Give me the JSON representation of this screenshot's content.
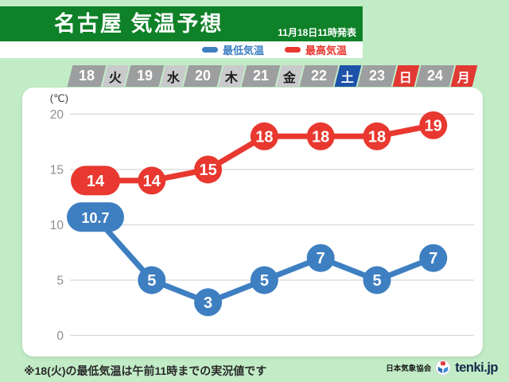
{
  "header": {
    "title": "名古屋 気温予想",
    "issued": "11月18日11時発表"
  },
  "legend": {
    "items": [
      {
        "label": "最低気温",
        "color": "#3e7fc1"
      },
      {
        "label": "最高気温",
        "color": "#e8382f"
      }
    ]
  },
  "date_row": {
    "days": [
      {
        "date": "18",
        "weekday": "火",
        "type": "weekday"
      },
      {
        "date": "19",
        "weekday": "水",
        "type": "weekday"
      },
      {
        "date": "20",
        "weekday": "木",
        "type": "weekday"
      },
      {
        "date": "21",
        "weekday": "金",
        "type": "weekday"
      },
      {
        "date": "22",
        "weekday": "土",
        "type": "saturday"
      },
      {
        "date": "23",
        "weekday": "日",
        "type": "sunday"
      },
      {
        "date": "24",
        "weekday": "月",
        "type": "holiday"
      }
    ]
  },
  "chart_data": {
    "type": "line",
    "title": "名古屋 気温予想",
    "unit_label": "(℃)",
    "x_categories": [
      "18",
      "19",
      "20",
      "21",
      "22",
      "23",
      "24"
    ],
    "x_weekdays": [
      "火",
      "水",
      "木",
      "金",
      "土",
      "日",
      "月"
    ],
    "y_ticks": [
      20,
      15,
      10,
      5,
      0
    ],
    "ylim": [
      0,
      21.5
    ],
    "grid": true,
    "legend_position": "top",
    "series": [
      {
        "name": "最高気温",
        "color": "#e8382f",
        "values": [
          14,
          14,
          15,
          18,
          18,
          18,
          19
        ],
        "labels": [
          "14",
          "14",
          "15",
          "18",
          "18",
          "18",
          "19"
        ]
      },
      {
        "name": "最低気温",
        "color": "#3e7fc1",
        "values": [
          10.7,
          5,
          3,
          5,
          7,
          5,
          7
        ],
        "labels": [
          "10.7",
          "5",
          "3",
          "5",
          "7",
          "5",
          "7"
        ]
      }
    ]
  },
  "footer": {
    "note": "※18(火)の最低気温は午前11時までの実況値です",
    "attribution": "日本気象協会",
    "brand": "tenki.jp"
  },
  "colors": {
    "background": "#c2ecc6",
    "banner": "#0f8128",
    "date_bg": "#9d9ea0",
    "weekday_bg": "#c9cacc",
    "weekday_text": "#1c1c1c",
    "saturday_bg": "#1d52a8",
    "sunday_bg": "#e23933",
    "holiday_bg": "#e23933",
    "max_color": "#e8382f",
    "min_color": "#3e7fc1",
    "gridline": "#d8d8d8",
    "tick_text": "#8f8f8f"
  }
}
